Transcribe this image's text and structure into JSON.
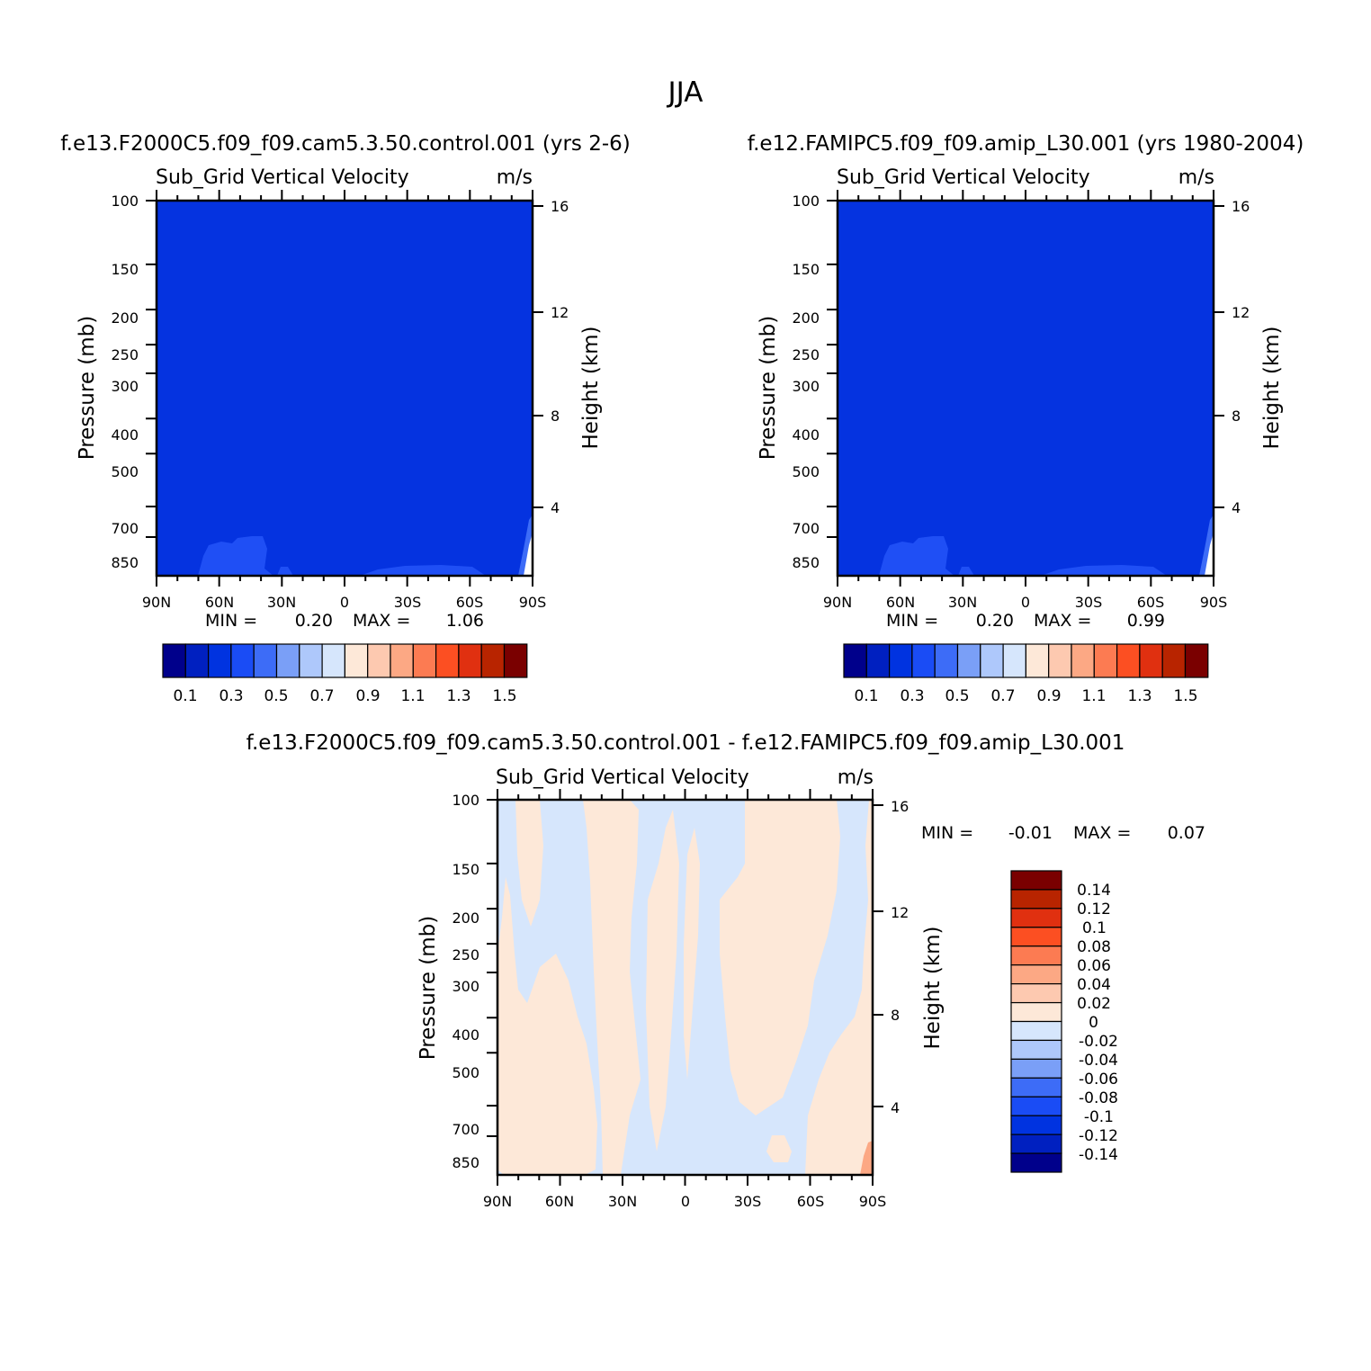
{
  "figure_title": "JJA",
  "colors": {
    "cb1": [
      "#00008b",
      "#0020c0",
      "#0033e0",
      "#1a4cf5",
      "#3d6cf7",
      "#7a9ff7",
      "#aec8fb",
      "#d6e6fc",
      "#fde8d8",
      "#fdc9b0",
      "#fca884",
      "#fc7b52",
      "#fc4f22",
      "#e03010",
      "#b82400",
      "#7a0000"
    ],
    "cb2": [
      "#00008b",
      "#0020c0",
      "#0033e0",
      "#1a4cf5",
      "#3d6cf7",
      "#7a9ff7",
      "#aec8fb",
      "#d6e6fc",
      "#fde8d8",
      "#fdc9b0",
      "#fca884",
      "#fc7b52",
      "#fc4f22",
      "#e03010",
      "#b82400",
      "#7a0000"
    ],
    "fill_base": "#0533e0",
    "fill_low": "#1f4ff5",
    "diff_neg": "#d6e6fc",
    "diff_pos": "#fde8d8"
  },
  "chart_data": [
    {
      "type": "heatmap",
      "case_title": "f.e13.F2000C5.f09_f09.cam5.3.50.control.001 (yrs 2-6)",
      "variable": "Sub_Grid Vertical Velocity",
      "units": "m/s",
      "ylabel": "Pressure (mb)",
      "ylabel_right": "Height (km)",
      "xticks": [
        "90N",
        "60N",
        "30N",
        "0",
        "30S",
        "60S",
        "90S"
      ],
      "yticks": [
        "100",
        "150",
        "200",
        "250",
        "300",
        "400",
        "500",
        "700",
        "850"
      ],
      "yticks_right": [
        "16",
        "12",
        "8",
        "4"
      ],
      "min_label": "MIN =",
      "min_value": "0.20",
      "max_label": "MAX =",
      "max_value": "1.06",
      "colorbar_ticks": [
        "0.1",
        "0.3",
        "0.5",
        "0.7",
        "0.9",
        "1.1",
        "1.3",
        "1.5"
      ]
    },
    {
      "type": "heatmap",
      "case_title": "f.e12.FAMIPC5.f09_f09.amip_L30.001 (yrs 1980-2004)",
      "variable": "Sub_Grid Vertical Velocity",
      "units": "m/s",
      "ylabel": "Pressure (mb)",
      "ylabel_right": "Height (km)",
      "xticks": [
        "90N",
        "60N",
        "30N",
        "0",
        "30S",
        "60S",
        "90S"
      ],
      "yticks": [
        "100",
        "150",
        "200",
        "250",
        "300",
        "400",
        "500",
        "700",
        "850"
      ],
      "yticks_right": [
        "16",
        "12",
        "8",
        "4"
      ],
      "min_label": "MIN =",
      "min_value": "0.20",
      "max_label": "MAX =",
      "max_value": "0.99",
      "colorbar_ticks": [
        "0.1",
        "0.3",
        "0.5",
        "0.7",
        "0.9",
        "1.1",
        "1.3",
        "1.5"
      ]
    },
    {
      "type": "heatmap",
      "case_title": "f.e13.F2000C5.f09_f09.cam5.3.50.control.001 - f.e12.FAMIPC5.f09_f09.amip_L30.001",
      "variable": "Sub_Grid Vertical Velocity",
      "units": "m/s",
      "ylabel": "Pressure (mb)",
      "ylabel_right": "Height (km)",
      "xticks": [
        "90N",
        "60N",
        "30N",
        "0",
        "30S",
        "60S",
        "90S"
      ],
      "yticks": [
        "100",
        "150",
        "200",
        "250",
        "300",
        "400",
        "500",
        "700",
        "850"
      ],
      "yticks_right": [
        "16",
        "12",
        "8",
        "4"
      ],
      "min_label": "MIN =",
      "min_value": "-0.01",
      "max_label": "MAX =",
      "max_value": "0.07",
      "colorbar_ticks": [
        "0.14",
        "0.12",
        "0.1",
        "0.08",
        "0.06",
        "0.04",
        "0.02",
        "0",
        "-0.02",
        "-0.04",
        "-0.06",
        "-0.08",
        "-0.1",
        "-0.12",
        "-0.14"
      ]
    }
  ]
}
